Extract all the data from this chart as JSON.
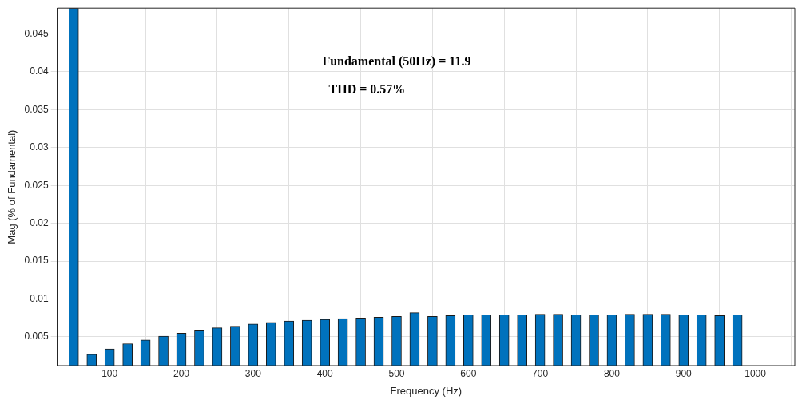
{
  "chart_data": {
    "type": "bar",
    "xlabel": "Frequency (Hz)",
    "ylabel": "Mag (% of Fundamental)",
    "annotations": [
      "Fundamental (50Hz) = 11.9",
      "THD = 0.57%"
    ],
    "x": [
      50,
      75,
      100,
      125,
      150,
      175,
      200,
      225,
      250,
      275,
      300,
      325,
      350,
      375,
      400,
      425,
      450,
      475,
      500,
      525,
      550,
      575,
      600,
      625,
      650,
      675,
      700,
      725,
      750,
      775,
      800,
      825,
      850,
      875,
      900,
      925,
      950,
      975
    ],
    "values": [
      0.0484,
      0.0027,
      0.0034,
      0.0041,
      0.0046,
      0.0051,
      0.0055,
      0.0059,
      0.0062,
      0.0064,
      0.0067,
      0.0069,
      0.0071,
      0.0072,
      0.0073,
      0.0074,
      0.0075,
      0.0076,
      0.0077,
      0.0082,
      0.0077,
      0.0078,
      0.0079,
      0.0079,
      0.0079,
      0.0079,
      0.008,
      0.008,
      0.0079,
      0.0079,
      0.0079,
      0.008,
      0.008,
      0.008,
      0.0079,
      0.0079,
      0.0078,
      0.0079
    ],
    "color": "#0072bd",
    "xlim": [
      27,
      1055
    ],
    "xticks": [
      100,
      200,
      300,
      400,
      500,
      600,
      700,
      800,
      900,
      1000
    ],
    "ylim": [
      0.0012,
      0.0484
    ],
    "yticks": [
      0.005,
      0.01,
      0.015,
      0.02,
      0.025,
      0.03,
      0.035,
      0.04,
      0.045
    ],
    "grid": true,
    "legend": false
  }
}
